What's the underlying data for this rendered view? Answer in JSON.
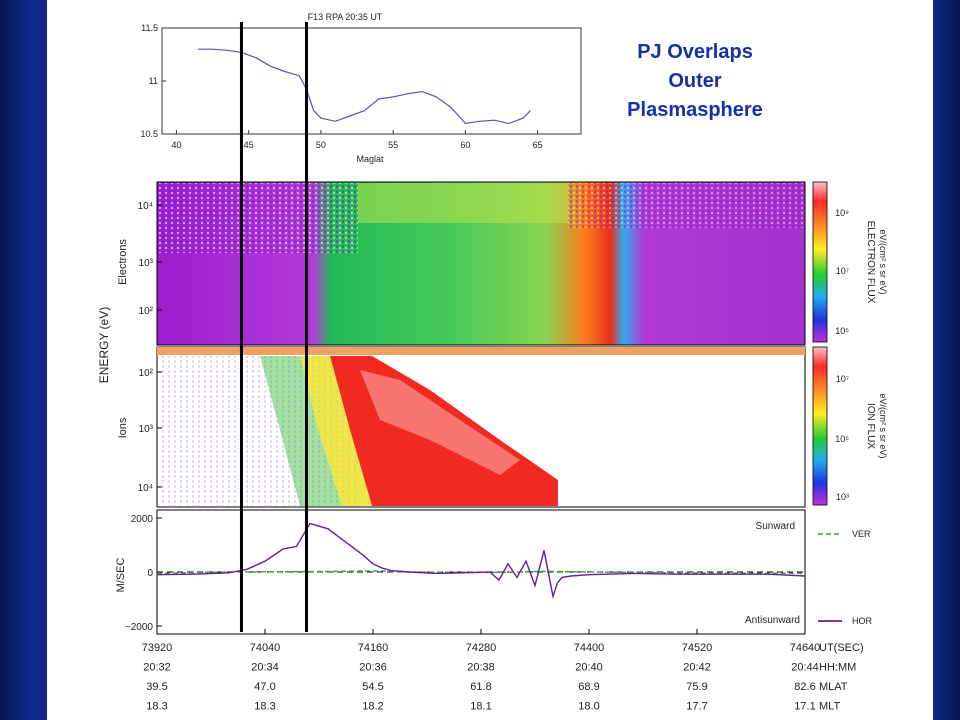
{
  "slide": {
    "annotation_lines": [
      "PJ Overlaps",
      "Outer",
      "Plasmasphere"
    ],
    "colors": {
      "background": "#0d2a8a",
      "annotation": "#1531a8",
      "markers": "#000000"
    },
    "marker_lines_maglat": [
      44.5,
      49
    ]
  },
  "chart_data": [
    {
      "type": "line",
      "title": "F13 RPA  20:35 UT",
      "xlabel": "Maglat",
      "xlim": [
        39,
        68
      ],
      "ylim": [
        10.5,
        11.5
      ],
      "xticks": [
        "40",
        "45",
        "50",
        "55",
        "60",
        "65"
      ],
      "yticks": [
        "11.5",
        "11",
        "10.5"
      ],
      "series": [
        {
          "color": "#5555bb",
          "x": [
            41.5,
            42.5,
            43.5,
            44.5,
            45.5,
            46.5,
            47.5,
            48.5,
            49,
            49.5,
            50,
            51,
            52,
            53,
            54,
            55,
            56,
            57,
            58,
            59,
            60,
            61,
            62,
            63,
            64,
            64.5
          ],
          "y": [
            11.3,
            11.3,
            11.29,
            11.27,
            11.22,
            11.14,
            11.09,
            11.05,
            10.92,
            10.72,
            10.65,
            10.62,
            10.67,
            10.72,
            10.83,
            10.85,
            10.88,
            10.9,
            10.85,
            10.75,
            10.6,
            10.62,
            10.63,
            10.6,
            10.65,
            10.72
          ]
        }
      ]
    },
    {
      "type": "heatmap",
      "ylabel": "ENERGY (eV)",
      "panels": [
        {
          "name": "Electrons",
          "yticks": [
            "10⁴",
            "10³",
            "10²"
          ],
          "colorbar_label": "ELECTRON FLUX",
          "colorbar_units": "eV/(cm² s sr eV)",
          "colorbar_ticks": [
            "10⁹",
            "10⁷",
            "10⁵"
          ]
        },
        {
          "name": "Ions",
          "yticks": [
            "10²",
            "10³",
            "10⁴"
          ],
          "colorbar_label": "ION FLUX",
          "colorbar_units": "eV/(cm² s sr eV)",
          "colorbar_ticks": [
            "10⁷",
            "10⁵",
            "10³"
          ]
        }
      ]
    },
    {
      "type": "line",
      "ylabel": "M/SEC",
      "ylim": [
        -2000,
        2000
      ],
      "yticks": [
        "2000",
        "0",
        "−2000"
      ],
      "xlim": [
        73920,
        74640
      ],
      "annotations": [
        "Sunward",
        "Antisunward"
      ],
      "legend": "right",
      "series": [
        {
          "name": "VER",
          "color": "#33aa33",
          "dashed": true,
          "x": [
            73920,
            74000,
            74100,
            74170,
            74200,
            74300,
            74350,
            74400,
            74500,
            74640
          ],
          "y": [
            -50,
            0,
            20,
            40,
            0,
            -20,
            30,
            0,
            -30,
            -50
          ]
        },
        {
          "name": "HOR",
          "color": "#6a1b9a",
          "dashed": false,
          "x": [
            73920,
            73960,
            74000,
            74020,
            74040,
            74060,
            74075,
            74090,
            74110,
            74130,
            74150,
            74160,
            74170,
            74180,
            74200,
            74230,
            74260,
            74290,
            74300,
            74310,
            74320,
            74330,
            74340,
            74350,
            74360,
            74365,
            74370,
            74380,
            74400,
            74450,
            74500,
            74560,
            74600,
            74640
          ],
          "y": [
            -100,
            -80,
            -30,
            100,
            400,
            850,
            950,
            1800,
            1600,
            1100,
            600,
            300,
            150,
            50,
            0,
            -50,
            -30,
            0,
            -300,
            300,
            -200,
            400,
            -500,
            800,
            -900,
            -400,
            -200,
            -150,
            -100,
            -50,
            -80,
            -80,
            -80,
            -150
          ]
        }
      ],
      "x_rows": [
        {
          "label": "UT(SEC)",
          "values": [
            "73920",
            "74040",
            "74160",
            "74280",
            "74400",
            "74520",
            "74640"
          ]
        },
        {
          "label": "HH:MM",
          "values": [
            "20:32",
            "20:34",
            "20:36",
            "20:38",
            "20:40",
            "20:42",
            "20:44"
          ]
        },
        {
          "label": "MLAT",
          "values": [
            "39.5",
            "47.0",
            "54.5",
            "61.8",
            "68.9",
            "75.9",
            "82.6"
          ]
        },
        {
          "label": "MLT",
          "values": [
            "18.3",
            "18.3",
            "18.2",
            "18.1",
            "18.0",
            "17.7",
            "17.1"
          ]
        }
      ]
    }
  ]
}
